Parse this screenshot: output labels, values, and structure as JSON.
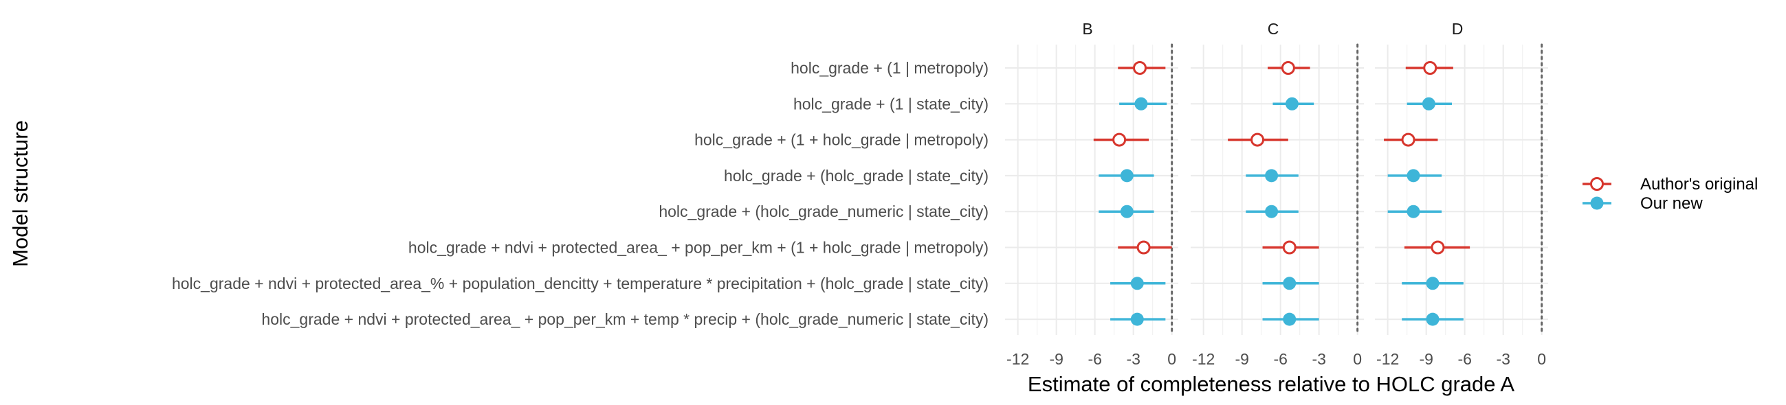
{
  "chart_data": {
    "type": "scatter",
    "subtype": "dot-and-whisker, faceted",
    "xlabel": "Estimate of completeness relative to HOLC grade A",
    "ylabel": "Model structure",
    "xlim": [
      -13,
      0.5
    ],
    "xticks": [
      -12,
      -9,
      -6,
      -3,
      0
    ],
    "xtick_labels": [
      "-12",
      "-9",
      "-6",
      "-3",
      "0"
    ],
    "reference_line": 0,
    "grid": true,
    "legend_position": "right",
    "colors": {
      "authors_original": "#d7362d",
      "our_new": "#3eb5d8"
    },
    "models": [
      "holc_grade + (1 | metropoly)",
      "holc_grade + (1 | state_city)",
      "holc_grade + (1 + holc_grade | metropoly)",
      "holc_grade + (holc_grade | state_city)",
      "holc_grade + (holc_grade_numeric | state_city)",
      "holc_grade + ndvi + protected_area_ + pop_per_km + (1 + holc_grade | metropoly)",
      "holc_grade + ndvi + protected_area_% + population_dencitty + temperature * precipitation + (holc_grade | state_city)",
      "holc_grade + ndvi + protected_area_ + pop_per_km + temp * precip + (holc_grade_numeric | state_city)"
    ],
    "series": [
      {
        "name": "Author's original",
        "marker": "open-circle"
      },
      {
        "name": "Our new",
        "marker": "filled-circle"
      }
    ],
    "facets": [
      {
        "label": "B",
        "points": [
          {
            "model": 0,
            "series": 0,
            "estimate": -2.5,
            "low": -4.2,
            "high": -0.5
          },
          {
            "model": 1,
            "series": 1,
            "estimate": -2.4,
            "low": -4.1,
            "high": -0.4
          },
          {
            "model": 2,
            "series": 0,
            "estimate": -4.1,
            "low": -6.1,
            "high": -1.8
          },
          {
            "model": 3,
            "series": 1,
            "estimate": -3.5,
            "low": -5.7,
            "high": -1.4
          },
          {
            "model": 4,
            "series": 1,
            "estimate": -3.5,
            "low": -5.7,
            "high": -1.4
          },
          {
            "model": 5,
            "series": 0,
            "estimate": -2.2,
            "low": -4.2,
            "high": 0.0
          },
          {
            "model": 6,
            "series": 1,
            "estimate": -2.7,
            "low": -4.8,
            "high": -0.5
          },
          {
            "model": 7,
            "series": 1,
            "estimate": -2.7,
            "low": -4.8,
            "high": -0.5
          }
        ]
      },
      {
        "label": "C",
        "points": [
          {
            "model": 0,
            "series": 0,
            "estimate": -5.4,
            "low": -7.0,
            "high": -3.7
          },
          {
            "model": 1,
            "series": 1,
            "estimate": -5.1,
            "low": -6.6,
            "high": -3.4
          },
          {
            "model": 2,
            "series": 0,
            "estimate": -7.8,
            "low": -10.1,
            "high": -5.4
          },
          {
            "model": 3,
            "series": 1,
            "estimate": -6.7,
            "low": -8.7,
            "high": -4.6
          },
          {
            "model": 4,
            "series": 1,
            "estimate": -6.7,
            "low": -8.7,
            "high": -4.6
          },
          {
            "model": 5,
            "series": 0,
            "estimate": -5.3,
            "low": -7.4,
            "high": -3.0
          },
          {
            "model": 6,
            "series": 1,
            "estimate": -5.3,
            "low": -7.4,
            "high": -3.0
          },
          {
            "model": 7,
            "series": 1,
            "estimate": -5.3,
            "low": -7.4,
            "high": -3.0
          }
        ]
      },
      {
        "label": "D",
        "points": [
          {
            "model": 0,
            "series": 0,
            "estimate": -8.7,
            "low": -10.6,
            "high": -6.9
          },
          {
            "model": 1,
            "series": 1,
            "estimate": -8.8,
            "low": -10.5,
            "high": -7.0
          },
          {
            "model": 2,
            "series": 0,
            "estimate": -10.4,
            "low": -12.3,
            "high": -8.1
          },
          {
            "model": 3,
            "series": 1,
            "estimate": -10.0,
            "low": -12.0,
            "high": -7.8
          },
          {
            "model": 4,
            "series": 1,
            "estimate": -10.0,
            "low": -12.0,
            "high": -7.8
          },
          {
            "model": 5,
            "series": 0,
            "estimate": -8.1,
            "low": -10.7,
            "high": -5.6
          },
          {
            "model": 6,
            "series": 1,
            "estimate": -8.5,
            "low": -10.9,
            "high": -6.1
          },
          {
            "model": 7,
            "series": 1,
            "estimate": -8.5,
            "low": -10.9,
            "high": -6.1
          }
        ]
      }
    ]
  }
}
